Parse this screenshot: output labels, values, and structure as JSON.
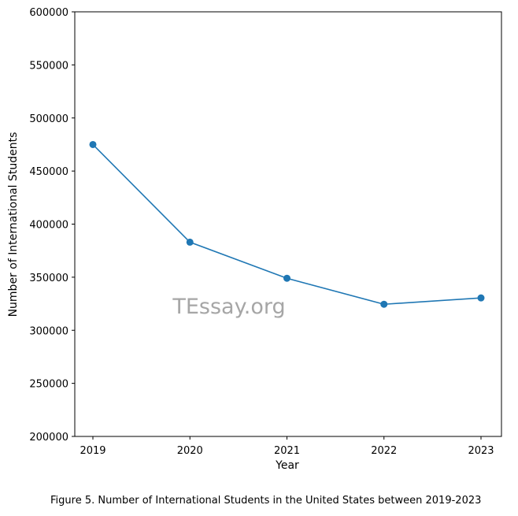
{
  "chart_data": {
    "type": "line",
    "title": "",
    "xlabel": "Year",
    "ylabel": "Number of International Students",
    "x": [
      "2019",
      "2020",
      "2021",
      "2022",
      "2023"
    ],
    "series": [
      {
        "values": [
          475000,
          383000,
          349000,
          324500,
          330500
        ],
        "color": "#1f77b4",
        "marker": "circle"
      }
    ],
    "ylim": [
      200000,
      600000
    ],
    "yticks": [
      "200000",
      "250000",
      "300000",
      "350000",
      "400000",
      "450000",
      "500000",
      "550000",
      "600000"
    ],
    "grid": false
  },
  "watermark": "TEssay.org",
  "caption": "Figure 5. Number of International Students in the United States between 2019-2023"
}
